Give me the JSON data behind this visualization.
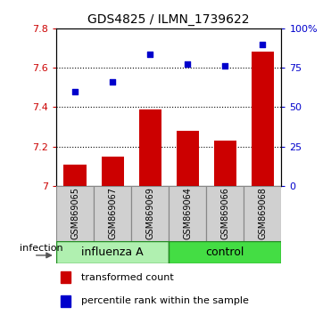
{
  "title": "GDS4825 / ILMN_1739622",
  "samples": [
    "GSM869065",
    "GSM869067",
    "GSM869069",
    "GSM869064",
    "GSM869066",
    "GSM869068"
  ],
  "group_labels": [
    "influenza A",
    "control"
  ],
  "bar_values": [
    7.11,
    7.15,
    7.39,
    7.28,
    7.23,
    7.68
  ],
  "scatter_values": [
    7.48,
    7.53,
    7.67,
    7.62,
    7.61,
    7.72
  ],
  "bar_color": "#cc0000",
  "scatter_color": "#0000cc",
  "ylim_left": [
    7.0,
    7.8
  ],
  "ylim_right": [
    0,
    100
  ],
  "yticks_left": [
    7.0,
    7.2,
    7.4,
    7.6,
    7.8
  ],
  "ytick_labels_left": [
    "7",
    "7.2",
    "7.4",
    "7.6",
    "7.8"
  ],
  "yticks_right": [
    0,
    25,
    50,
    75,
    100
  ],
  "ytick_labels_right": [
    "0",
    "25",
    "50",
    "75",
    "100%"
  ],
  "grid_values": [
    7.2,
    7.4,
    7.6
  ],
  "bar_width": 0.6,
  "influenza_color": "#b0f0b0",
  "control_color": "#44dd44",
  "sample_box_color": "#d0d0d0",
  "left_color": "#cc0000",
  "right_color": "#0000cc",
  "infection_label": "infection",
  "legend_bar_label": "transformed count",
  "legend_scatter_label": "percentile rank within the sample",
  "title_fontsize": 10,
  "tick_fontsize": 8,
  "sample_fontsize": 7,
  "group_fontsize": 9,
  "legend_fontsize": 8
}
